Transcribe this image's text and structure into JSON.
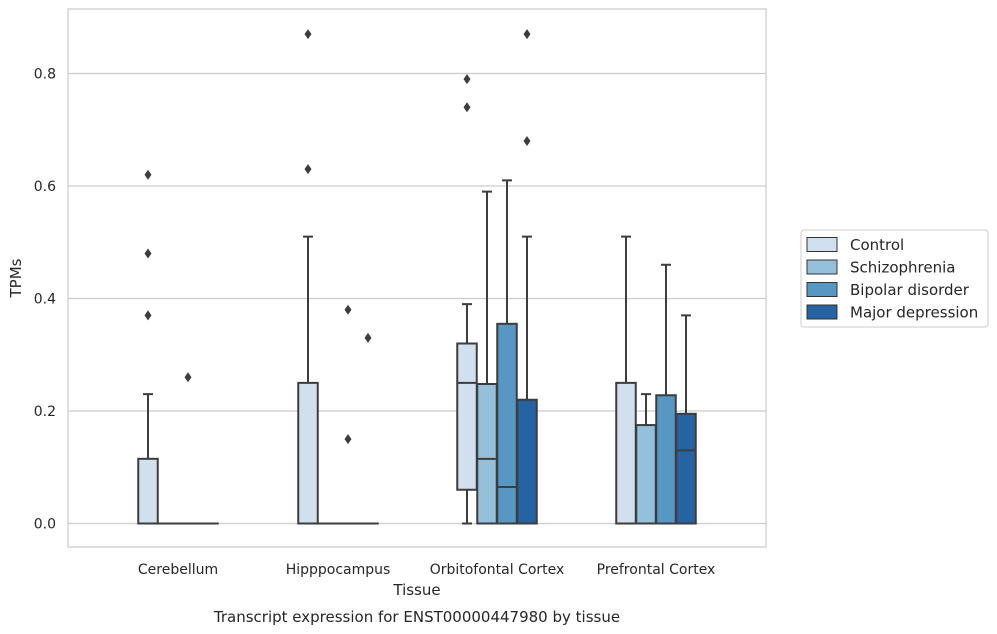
{
  "chart_data": {
    "type": "box",
    "title": "",
    "caption": "Transcript expression for ENST00000447980 by tissue",
    "xlabel": "Tissue",
    "ylabel": "TPMs",
    "ylim": [
      -0.042,
      0.915
    ],
    "yticks": [
      0.0,
      0.2,
      0.4,
      0.6,
      0.8
    ],
    "ytick_labels": [
      "0.0",
      "0.2",
      "0.4",
      "0.6",
      "0.8"
    ],
    "grid": "horizontal",
    "legend_position": "right",
    "categories": [
      "Cerebellum",
      "Hipppocampus",
      "Orbitofontal Cortex",
      "Prefrontal Cortex"
    ],
    "series": [
      {
        "name": "Control",
        "color": "#d1e0ef",
        "boxes": [
          {
            "q1": 0.0,
            "median": 0.0,
            "q3": 0.115,
            "whisker_low": 0.0,
            "whisker_high": 0.23,
            "outliers": [
              0.37,
              0.48,
              0.62
            ]
          },
          {
            "q1": 0.0,
            "median": 0.0,
            "q3": 0.25,
            "whisker_low": 0.0,
            "whisker_high": 0.51,
            "outliers": [
              0.63,
              0.87
            ]
          },
          {
            "q1": 0.06,
            "median": 0.25,
            "q3": 0.32,
            "whisker_low": 0.0,
            "whisker_high": 0.39,
            "outliers": [
              0.74,
              0.79
            ]
          },
          {
            "q1": 0.0,
            "median": 0.0,
            "q3": 0.25,
            "whisker_low": 0.0,
            "whisker_high": 0.51,
            "outliers": []
          }
        ]
      },
      {
        "name": "Schizophrenia",
        "color": "#94c0dc",
        "boxes": [
          {
            "q1": 0.0,
            "median": 0.0,
            "q3": 0.0,
            "whisker_low": 0.0,
            "whisker_high": 0.0,
            "outliers": []
          },
          {
            "q1": 0.0,
            "median": 0.0,
            "q3": 0.0,
            "whisker_low": 0.0,
            "whisker_high": 0.0,
            "outliers": []
          },
          {
            "q1": 0.0,
            "median": 0.115,
            "q3": 0.248,
            "whisker_low": 0.0,
            "whisker_high": 0.59,
            "outliers": []
          },
          {
            "q1": 0.0,
            "median": 0.0,
            "q3": 0.175,
            "whisker_low": 0.0,
            "whisker_high": 0.23,
            "outliers": []
          }
        ]
      },
      {
        "name": "Bipolar disorder",
        "color": "#5797c3",
        "boxes": [
          {
            "q1": 0.0,
            "median": 0.0,
            "q3": 0.0,
            "whisker_low": 0.0,
            "whisker_high": 0.0,
            "outliers": [
              0.26
            ]
          },
          {
            "q1": 0.0,
            "median": 0.0,
            "q3": 0.0,
            "whisker_low": 0.0,
            "whisker_high": 0.0,
            "outliers": [
              0.15,
              0.38
            ]
          },
          {
            "q1": 0.0,
            "median": 0.065,
            "q3": 0.355,
            "whisker_low": 0.0,
            "whisker_high": 0.61,
            "outliers": []
          },
          {
            "q1": 0.0,
            "median": 0.0,
            "q3": 0.228,
            "whisker_low": 0.0,
            "whisker_high": 0.46,
            "outliers": []
          }
        ]
      },
      {
        "name": "Major depression",
        "color": "#2563a3",
        "boxes": [
          {
            "q1": 0.0,
            "median": 0.0,
            "q3": 0.0,
            "whisker_low": 0.0,
            "whisker_high": 0.0,
            "outliers": []
          },
          {
            "q1": 0.0,
            "median": 0.0,
            "q3": 0.0,
            "whisker_low": 0.0,
            "whisker_high": 0.0,
            "outliers": [
              0.33
            ]
          },
          {
            "q1": 0.0,
            "median": 0.0,
            "q3": 0.22,
            "whisker_low": 0.0,
            "whisker_high": 0.51,
            "outliers": [
              0.68,
              0.87
            ]
          },
          {
            "q1": 0.0,
            "median": 0.13,
            "q3": 0.195,
            "whisker_low": 0.0,
            "whisker_high": 0.37,
            "outliers": []
          }
        ]
      }
    ]
  }
}
